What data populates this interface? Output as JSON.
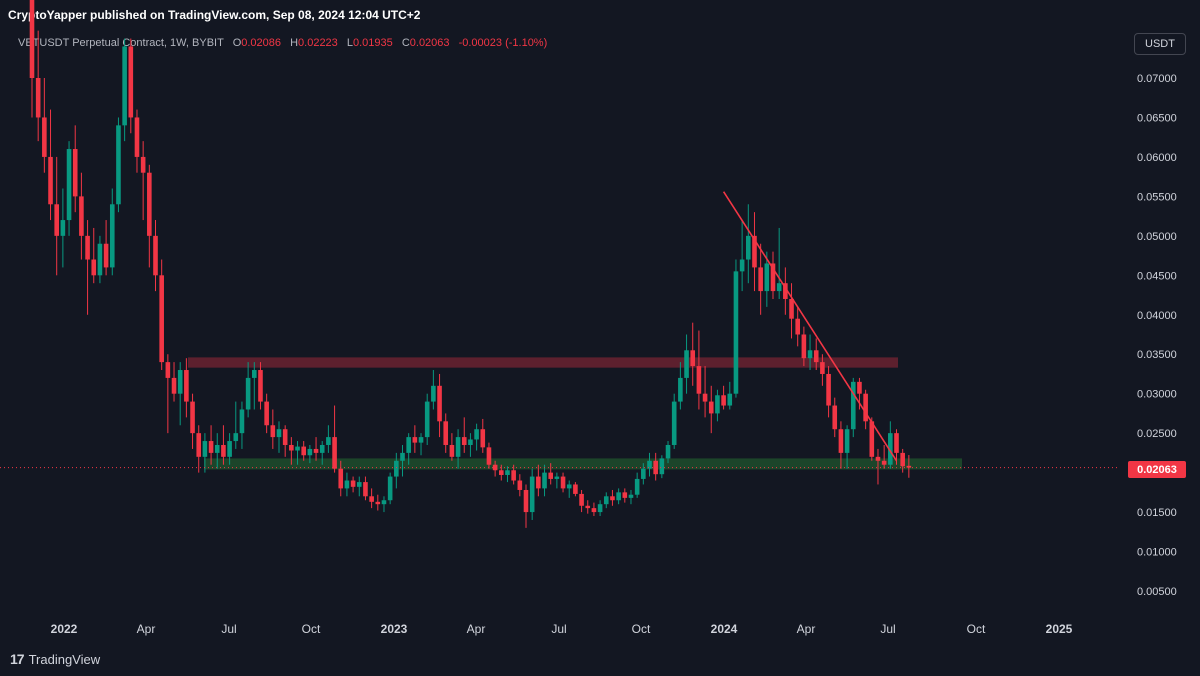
{
  "header": {
    "publisher_line": "CryptoYapper published on TradingView.com, Sep 08, 2024 12:04 UTC+2"
  },
  "legend": {
    "symbol": "VETUSDT Perpetual Contract, 1W, BYBIT",
    "o_label": "O",
    "o_value": "0.02086",
    "h_label": "H",
    "h_value": "0.02223",
    "l_label": "L",
    "l_value": "0.01935",
    "c_label": "C",
    "c_value": "0.02063",
    "change": "-0.00023 (-1.10%)"
  },
  "quote_currency": "USDT",
  "last_price_tag": "0.02063",
  "brand": {
    "logo": "17",
    "name": "TradingView"
  },
  "colors": {
    "background": "#131722",
    "up": "#089981",
    "down": "#f23645",
    "resistance_zone": "#6b2230",
    "support_zone": "#1e4a2b",
    "trendline": "#f23645"
  },
  "chart_data": {
    "type": "candlestick",
    "title": "VETUSDT Perpetual Contract, 1W, BYBIT",
    "y_ticks": [
      "0.07000",
      "0.06500",
      "0.06000",
      "0.05500",
      "0.05000",
      "0.04500",
      "0.04000",
      "0.03500",
      "0.03000",
      "0.02500",
      "0.02000",
      "0.01500",
      "0.01000",
      "0.00500"
    ],
    "x_ticks": [
      {
        "label": "2022",
        "year": true
      },
      {
        "label": "Apr",
        "year": false
      },
      {
        "label": "Jul",
        "year": false
      },
      {
        "label": "Oct",
        "year": false
      },
      {
        "label": "2023",
        "year": true
      },
      {
        "label": "Apr",
        "year": false
      },
      {
        "label": "Jul",
        "year": false
      },
      {
        "label": "Oct",
        "year": false
      },
      {
        "label": "2024",
        "year": true
      },
      {
        "label": "Apr",
        "year": false
      },
      {
        "label": "Jul",
        "year": false
      },
      {
        "label": "Oct",
        "year": false
      },
      {
        "label": "2025",
        "year": true
      }
    ],
    "ylim": [
      0.0,
      0.0745
    ],
    "last_close": 0.02063,
    "resistance_zone": [
      0.0333,
      0.0346
    ],
    "support_zone": [
      0.0204,
      0.0218
    ],
    "trendline": [
      {
        "date": "2024-02-26",
        "price": 0.0556
      },
      {
        "date": "2024-09-09",
        "price": 0.0215
      }
    ],
    "candles": [
      {
        "o": 0.08,
        "h": 0.083,
        "l": 0.065,
        "c": 0.07
      },
      {
        "o": 0.07,
        "h": 0.076,
        "l": 0.062,
        "c": 0.065
      },
      {
        "o": 0.065,
        "h": 0.07,
        "l": 0.058,
        "c": 0.06
      },
      {
        "o": 0.06,
        "h": 0.066,
        "l": 0.052,
        "c": 0.054
      },
      {
        "o": 0.054,
        "h": 0.06,
        "l": 0.045,
        "c": 0.05
      },
      {
        "o": 0.05,
        "h": 0.056,
        "l": 0.046,
        "c": 0.052
      },
      {
        "o": 0.052,
        "h": 0.062,
        "l": 0.05,
        "c": 0.061
      },
      {
        "o": 0.061,
        "h": 0.064,
        "l": 0.053,
        "c": 0.055
      },
      {
        "o": 0.055,
        "h": 0.058,
        "l": 0.047,
        "c": 0.05
      },
      {
        "o": 0.05,
        "h": 0.052,
        "l": 0.04,
        "c": 0.047
      },
      {
        "o": 0.047,
        "h": 0.051,
        "l": 0.044,
        "c": 0.045
      },
      {
        "o": 0.045,
        "h": 0.05,
        "l": 0.044,
        "c": 0.049
      },
      {
        "o": 0.049,
        "h": 0.052,
        "l": 0.045,
        "c": 0.046
      },
      {
        "o": 0.046,
        "h": 0.056,
        "l": 0.045,
        "c": 0.054
      },
      {
        "o": 0.054,
        "h": 0.065,
        "l": 0.053,
        "c": 0.064
      },
      {
        "o": 0.064,
        "h": 0.075,
        "l": 0.062,
        "c": 0.074
      },
      {
        "o": 0.074,
        "h": 0.075,
        "l": 0.063,
        "c": 0.065
      },
      {
        "o": 0.065,
        "h": 0.066,
        "l": 0.058,
        "c": 0.06
      },
      {
        "o": 0.06,
        "h": 0.062,
        "l": 0.052,
        "c": 0.058
      },
      {
        "o": 0.058,
        "h": 0.059,
        "l": 0.046,
        "c": 0.05
      },
      {
        "o": 0.05,
        "h": 0.052,
        "l": 0.043,
        "c": 0.045
      },
      {
        "o": 0.045,
        "h": 0.047,
        "l": 0.033,
        "c": 0.034
      },
      {
        "o": 0.034,
        "h": 0.035,
        "l": 0.025,
        "c": 0.032
      },
      {
        "o": 0.032,
        "h": 0.034,
        "l": 0.029,
        "c": 0.03
      },
      {
        "o": 0.03,
        "h": 0.034,
        "l": 0.026,
        "c": 0.033
      },
      {
        "o": 0.033,
        "h": 0.0345,
        "l": 0.027,
        "c": 0.029
      },
      {
        "o": 0.029,
        "h": 0.03,
        "l": 0.023,
        "c": 0.025
      },
      {
        "o": 0.025,
        "h": 0.026,
        "l": 0.02,
        "c": 0.022
      },
      {
        "o": 0.022,
        "h": 0.025,
        "l": 0.02,
        "c": 0.024
      },
      {
        "o": 0.024,
        "h": 0.026,
        "l": 0.021,
        "c": 0.0225
      },
      {
        "o": 0.0225,
        "h": 0.025,
        "l": 0.0205,
        "c": 0.0235
      },
      {
        "o": 0.0235,
        "h": 0.026,
        "l": 0.021,
        "c": 0.022
      },
      {
        "o": 0.022,
        "h": 0.025,
        "l": 0.021,
        "c": 0.024
      },
      {
        "o": 0.024,
        "h": 0.029,
        "l": 0.023,
        "c": 0.025
      },
      {
        "o": 0.025,
        "h": 0.029,
        "l": 0.023,
        "c": 0.028
      },
      {
        "o": 0.028,
        "h": 0.034,
        "l": 0.027,
        "c": 0.032
      },
      {
        "o": 0.032,
        "h": 0.034,
        "l": 0.028,
        "c": 0.033
      },
      {
        "o": 0.033,
        "h": 0.034,
        "l": 0.028,
        "c": 0.029
      },
      {
        "o": 0.029,
        "h": 0.03,
        "l": 0.025,
        "c": 0.026
      },
      {
        "o": 0.026,
        "h": 0.028,
        "l": 0.023,
        "c": 0.0245
      },
      {
        "o": 0.0245,
        "h": 0.0265,
        "l": 0.0225,
        "c": 0.0255
      },
      {
        "o": 0.0255,
        "h": 0.026,
        "l": 0.022,
        "c": 0.0235
      },
      {
        "o": 0.0235,
        "h": 0.0245,
        "l": 0.021,
        "c": 0.0228
      },
      {
        "o": 0.0228,
        "h": 0.024,
        "l": 0.021,
        "c": 0.0233
      },
      {
        "o": 0.0233,
        "h": 0.024,
        "l": 0.0215,
        "c": 0.0222
      },
      {
        "o": 0.0222,
        "h": 0.0235,
        "l": 0.0212,
        "c": 0.023
      },
      {
        "o": 0.023,
        "h": 0.0245,
        "l": 0.0215,
        "c": 0.0225
      },
      {
        "o": 0.0225,
        "h": 0.024,
        "l": 0.021,
        "c": 0.0235
      },
      {
        "o": 0.0235,
        "h": 0.026,
        "l": 0.0225,
        "c": 0.0245
      },
      {
        "o": 0.0245,
        "h": 0.0285,
        "l": 0.02,
        "c": 0.0205
      },
      {
        "o": 0.0205,
        "h": 0.0215,
        "l": 0.017,
        "c": 0.018
      },
      {
        "o": 0.018,
        "h": 0.02,
        "l": 0.017,
        "c": 0.019
      },
      {
        "o": 0.019,
        "h": 0.0195,
        "l": 0.0175,
        "c": 0.0182
      },
      {
        "o": 0.0182,
        "h": 0.0195,
        "l": 0.017,
        "c": 0.0188
      },
      {
        "o": 0.0188,
        "h": 0.0195,
        "l": 0.0165,
        "c": 0.017
      },
      {
        "o": 0.017,
        "h": 0.018,
        "l": 0.0155,
        "c": 0.0163
      },
      {
        "o": 0.0163,
        "h": 0.0172,
        "l": 0.0152,
        "c": 0.016
      },
      {
        "o": 0.016,
        "h": 0.017,
        "l": 0.015,
        "c": 0.0165
      },
      {
        "o": 0.0165,
        "h": 0.02,
        "l": 0.016,
        "c": 0.0195
      },
      {
        "o": 0.0195,
        "h": 0.0225,
        "l": 0.018,
        "c": 0.0215
      },
      {
        "o": 0.0215,
        "h": 0.0235,
        "l": 0.0195,
        "c": 0.0225
      },
      {
        "o": 0.0225,
        "h": 0.025,
        "l": 0.021,
        "c": 0.0245
      },
      {
        "o": 0.0245,
        "h": 0.026,
        "l": 0.0225,
        "c": 0.0238
      },
      {
        "o": 0.0238,
        "h": 0.025,
        "l": 0.0222,
        "c": 0.0245
      },
      {
        "o": 0.0245,
        "h": 0.03,
        "l": 0.0235,
        "c": 0.029
      },
      {
        "o": 0.029,
        "h": 0.033,
        "l": 0.028,
        "c": 0.031
      },
      {
        "o": 0.031,
        "h": 0.0325,
        "l": 0.0245,
        "c": 0.0265
      },
      {
        "o": 0.0265,
        "h": 0.0275,
        "l": 0.0225,
        "c": 0.0235
      },
      {
        "o": 0.0235,
        "h": 0.025,
        "l": 0.0215,
        "c": 0.022
      },
      {
        "o": 0.022,
        "h": 0.0255,
        "l": 0.0205,
        "c": 0.0245
      },
      {
        "o": 0.0245,
        "h": 0.027,
        "l": 0.0225,
        "c": 0.0235
      },
      {
        "o": 0.0235,
        "h": 0.025,
        "l": 0.022,
        "c": 0.0242
      },
      {
        "o": 0.0242,
        "h": 0.0262,
        "l": 0.0228,
        "c": 0.0255
      },
      {
        "o": 0.0255,
        "h": 0.0268,
        "l": 0.0225,
        "c": 0.0232
      },
      {
        "o": 0.0232,
        "h": 0.0238,
        "l": 0.0205,
        "c": 0.021
      },
      {
        "o": 0.021,
        "h": 0.0215,
        "l": 0.0195,
        "c": 0.0203
      },
      {
        "o": 0.0203,
        "h": 0.021,
        "l": 0.019,
        "c": 0.0197
      },
      {
        "o": 0.0197,
        "h": 0.0208,
        "l": 0.0188,
        "c": 0.0203
      },
      {
        "o": 0.0203,
        "h": 0.021,
        "l": 0.0185,
        "c": 0.019
      },
      {
        "o": 0.019,
        "h": 0.0198,
        "l": 0.017,
        "c": 0.0178
      },
      {
        "o": 0.0178,
        "h": 0.0185,
        "l": 0.013,
        "c": 0.015
      },
      {
        "o": 0.015,
        "h": 0.0205,
        "l": 0.014,
        "c": 0.0195
      },
      {
        "o": 0.0195,
        "h": 0.021,
        "l": 0.017,
        "c": 0.018
      },
      {
        "o": 0.018,
        "h": 0.021,
        "l": 0.017,
        "c": 0.02
      },
      {
        "o": 0.02,
        "h": 0.0212,
        "l": 0.0185,
        "c": 0.0192
      },
      {
        "o": 0.0192,
        "h": 0.02,
        "l": 0.018,
        "c": 0.0195
      },
      {
        "o": 0.0195,
        "h": 0.02,
        "l": 0.0175,
        "c": 0.018
      },
      {
        "o": 0.018,
        "h": 0.019,
        "l": 0.0168,
        "c": 0.0185
      },
      {
        "o": 0.0185,
        "h": 0.0188,
        "l": 0.017,
        "c": 0.0173
      },
      {
        "o": 0.0173,
        "h": 0.0178,
        "l": 0.015,
        "c": 0.0158
      },
      {
        "o": 0.0158,
        "h": 0.0165,
        "l": 0.0148,
        "c": 0.0155
      },
      {
        "o": 0.0155,
        "h": 0.0162,
        "l": 0.0145,
        "c": 0.015
      },
      {
        "o": 0.015,
        "h": 0.0165,
        "l": 0.0145,
        "c": 0.016
      },
      {
        "o": 0.016,
        "h": 0.0175,
        "l": 0.0155,
        "c": 0.017
      },
      {
        "o": 0.017,
        "h": 0.0178,
        "l": 0.0158,
        "c": 0.0165
      },
      {
        "o": 0.0165,
        "h": 0.018,
        "l": 0.016,
        "c": 0.0175
      },
      {
        "o": 0.0175,
        "h": 0.018,
        "l": 0.0162,
        "c": 0.0168
      },
      {
        "o": 0.0168,
        "h": 0.0178,
        "l": 0.016,
        "c": 0.0172
      },
      {
        "o": 0.0172,
        "h": 0.02,
        "l": 0.0168,
        "c": 0.0192
      },
      {
        "o": 0.0192,
        "h": 0.0212,
        "l": 0.0185,
        "c": 0.0205
      },
      {
        "o": 0.0205,
        "h": 0.0225,
        "l": 0.0195,
        "c": 0.0215
      },
      {
        "o": 0.0215,
        "h": 0.0225,
        "l": 0.019,
        "c": 0.0198
      },
      {
        "o": 0.0198,
        "h": 0.0222,
        "l": 0.0193,
        "c": 0.0218
      },
      {
        "o": 0.0218,
        "h": 0.024,
        "l": 0.0212,
        "c": 0.0235
      },
      {
        "o": 0.0235,
        "h": 0.03,
        "l": 0.023,
        "c": 0.029
      },
      {
        "o": 0.029,
        "h": 0.034,
        "l": 0.028,
        "c": 0.032
      },
      {
        "o": 0.032,
        "h": 0.0375,
        "l": 0.03,
        "c": 0.0355
      },
      {
        "o": 0.0355,
        "h": 0.039,
        "l": 0.031,
        "c": 0.0335
      },
      {
        "o": 0.0335,
        "h": 0.038,
        "l": 0.028,
        "c": 0.03
      },
      {
        "o": 0.03,
        "h": 0.0335,
        "l": 0.027,
        "c": 0.029
      },
      {
        "o": 0.029,
        "h": 0.031,
        "l": 0.025,
        "c": 0.0275
      },
      {
        "o": 0.0275,
        "h": 0.0305,
        "l": 0.0265,
        "c": 0.0298
      },
      {
        "o": 0.0298,
        "h": 0.031,
        "l": 0.028,
        "c": 0.0285
      },
      {
        "o": 0.0285,
        "h": 0.0315,
        "l": 0.028,
        "c": 0.03
      },
      {
        "o": 0.03,
        "h": 0.047,
        "l": 0.0295,
        "c": 0.0455
      },
      {
        "o": 0.0455,
        "h": 0.052,
        "l": 0.043,
        "c": 0.047
      },
      {
        "o": 0.047,
        "h": 0.054,
        "l": 0.044,
        "c": 0.05
      },
      {
        "o": 0.05,
        "h": 0.053,
        "l": 0.043,
        "c": 0.046
      },
      {
        "o": 0.046,
        "h": 0.049,
        "l": 0.04,
        "c": 0.043
      },
      {
        "o": 0.043,
        "h": 0.048,
        "l": 0.041,
        "c": 0.0465
      },
      {
        "o": 0.0465,
        "h": 0.048,
        "l": 0.042,
        "c": 0.043
      },
      {
        "o": 0.043,
        "h": 0.051,
        "l": 0.042,
        "c": 0.044
      },
      {
        "o": 0.044,
        "h": 0.046,
        "l": 0.04,
        "c": 0.042
      },
      {
        "o": 0.042,
        "h": 0.044,
        "l": 0.037,
        "c": 0.0395
      },
      {
        "o": 0.0395,
        "h": 0.041,
        "l": 0.036,
        "c": 0.0375
      },
      {
        "o": 0.0375,
        "h": 0.0385,
        "l": 0.0335,
        "c": 0.0345
      },
      {
        "o": 0.0345,
        "h": 0.0375,
        "l": 0.033,
        "c": 0.0355
      },
      {
        "o": 0.0355,
        "h": 0.037,
        "l": 0.033,
        "c": 0.034
      },
      {
        "o": 0.034,
        "h": 0.035,
        "l": 0.031,
        "c": 0.0325
      },
      {
        "o": 0.0325,
        "h": 0.0335,
        "l": 0.027,
        "c": 0.0285
      },
      {
        "o": 0.0285,
        "h": 0.0295,
        "l": 0.0245,
        "c": 0.0255
      },
      {
        "o": 0.0255,
        "h": 0.0265,
        "l": 0.0205,
        "c": 0.0225
      },
      {
        "o": 0.0225,
        "h": 0.026,
        "l": 0.0205,
        "c": 0.0255
      },
      {
        "o": 0.0255,
        "h": 0.032,
        "l": 0.0245,
        "c": 0.0315
      },
      {
        "o": 0.0315,
        "h": 0.032,
        "l": 0.028,
        "c": 0.03
      },
      {
        "o": 0.03,
        "h": 0.0305,
        "l": 0.0255,
        "c": 0.0265
      },
      {
        "o": 0.0265,
        "h": 0.027,
        "l": 0.0215,
        "c": 0.022
      },
      {
        "o": 0.022,
        "h": 0.023,
        "l": 0.0185,
        "c": 0.0215
      },
      {
        "o": 0.0215,
        "h": 0.0235,
        "l": 0.0205,
        "c": 0.021
      },
      {
        "o": 0.021,
        "h": 0.0265,
        "l": 0.0205,
        "c": 0.025
      },
      {
        "o": 0.025,
        "h": 0.0255,
        "l": 0.021,
        "c": 0.0225
      },
      {
        "o": 0.0225,
        "h": 0.023,
        "l": 0.02,
        "c": 0.0208
      },
      {
        "o": 0.02086,
        "h": 0.02223,
        "l": 0.01935,
        "c": 0.02063
      }
    ]
  }
}
